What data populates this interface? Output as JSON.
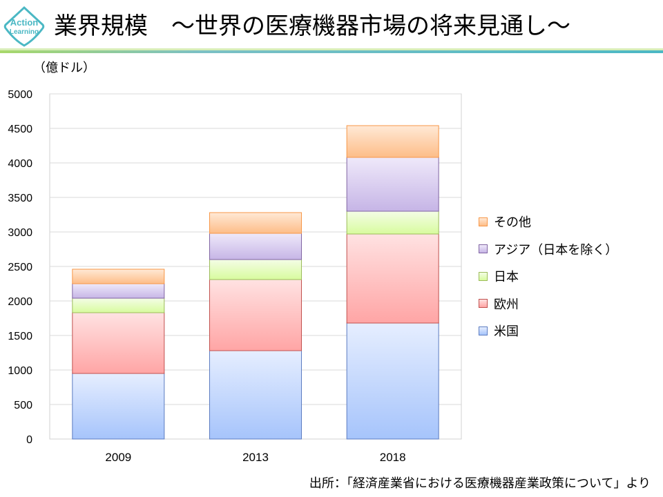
{
  "header": {
    "title": "業界規模　～世界の医療機器市場の将来見通し～",
    "logo_text": [
      "Action",
      "Learning"
    ]
  },
  "footer": {
    "source": "出所：「経済産業省における医療機器産業政策について」より"
  },
  "colors": {
    "accent": "#4bb8c4",
    "rule_green": "#a8d86a"
  },
  "chart_data": {
    "type": "bar",
    "stacked": true,
    "ylabel": "（億ドル）",
    "ylim": [
      0,
      5000
    ],
    "yticks": [
      0,
      500,
      1000,
      1500,
      2000,
      2500,
      3000,
      3500,
      4000,
      4500,
      5000
    ],
    "grid": true,
    "legend_position": "right",
    "categories": [
      "2009",
      "2013",
      "2018"
    ],
    "series": [
      {
        "name": "米国",
        "values": [
          950,
          1280,
          1680
        ],
        "color_top": "#e6eeff",
        "color_bottom": "#a6c4fb",
        "stroke": "#5b7bc0"
      },
      {
        "name": "欧州",
        "values": [
          880,
          1030,
          1290
        ],
        "color_top": "#ffe2e2",
        "color_bottom": "#ffa5a5",
        "stroke": "#c0504d"
      },
      {
        "name": "日本",
        "values": [
          210,
          290,
          330
        ],
        "color_top": "#f4fde6",
        "color_bottom": "#d8fb9e",
        "stroke": "#9bbb59"
      },
      {
        "name": "アジア（日本を除く）",
        "values": [
          210,
          380,
          780
        ],
        "color_top": "#efe9fa",
        "color_bottom": "#c6b5e6",
        "stroke": "#8064a2"
      },
      {
        "name": "その他",
        "values": [
          210,
          300,
          460
        ],
        "color_top": "#ffe9d6",
        "color_bottom": "#fdbd88",
        "stroke": "#f79646"
      }
    ]
  }
}
